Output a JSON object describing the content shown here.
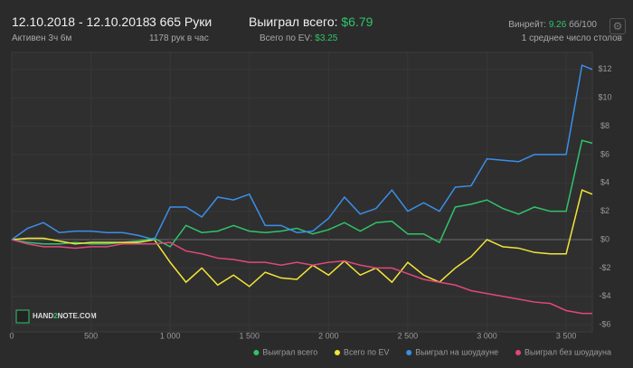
{
  "header": {
    "date_range": "12.10.2018 - 12.10.2018",
    "active": "Активен 3ч 6м",
    "hands": "3 665 Руки",
    "hands_per_hour": "1178 рук в час",
    "won_label": "Выиграл всего:",
    "won_value": "$6.79",
    "ev_label": "Всего по EV:",
    "ev_value": "$3.25",
    "winrate_label": "Винрейт:",
    "winrate_value": "9.26",
    "winrate_unit": "бб/100",
    "tables": "1 среднее число столов"
  },
  "logo": {
    "part1": "HAND",
    "part2": "2",
    "part3": "NOTE.COM"
  },
  "chart_data": {
    "type": "line",
    "grid": true,
    "x": [
      0,
      100,
      200,
      300,
      400,
      500,
      600,
      700,
      800,
      900,
      1000,
      1100,
      1200,
      1300,
      1400,
      1500,
      1600,
      1700,
      1800,
      1900,
      2000,
      2100,
      2200,
      2300,
      2400,
      2500,
      2600,
      2700,
      2800,
      2900,
      3000,
      3100,
      3200,
      3300,
      3400,
      3500,
      3600,
      3665
    ],
    "xlim": [
      0,
      3665
    ],
    "xticks": [
      0,
      500,
      {
        "value": 1000,
        "label": "1 000"
      },
      {
        "value": 1500,
        "label": "1 500"
      },
      {
        "value": 2000,
        "label": "2 000"
      },
      {
        "value": 2500,
        "label": "2 500"
      },
      {
        "value": 3000,
        "label": "3 000"
      },
      {
        "value": 3500,
        "label": "3 500"
      }
    ],
    "ylim": [
      -6.5,
      13.2
    ],
    "yticks": [
      {
        "value": -6,
        "label": "-$6"
      },
      {
        "value": -4,
        "label": "-$4"
      },
      {
        "value": -2,
        "label": "-$2"
      },
      {
        "value": 0,
        "label": "$0"
      },
      {
        "value": 2,
        "label": "$2"
      },
      {
        "value": 4,
        "label": "$4"
      },
      {
        "value": 6,
        "label": "$6"
      },
      {
        "value": 8,
        "label": "$8"
      },
      {
        "value": 10,
        "label": "$10"
      },
      {
        "value": 12,
        "label": "$12"
      }
    ],
    "series": [
      {
        "name": "Выиграл всего",
        "color": "#2fc46a",
        "values": [
          0,
          -0.2,
          -0.3,
          -0.3,
          -0.2,
          -0.3,
          -0.3,
          -0.2,
          -0.1,
          0.1,
          -0.5,
          1.0,
          0.5,
          0.6,
          1.0,
          0.6,
          0.5,
          0.6,
          0.8,
          0.4,
          0.7,
          1.2,
          0.6,
          1.2,
          1.3,
          0.4,
          0.4,
          -0.2,
          2.3,
          2.5,
          2.8,
          2.2,
          1.8,
          2.3,
          2.0,
          2.0,
          7.0,
          6.8
        ]
      },
      {
        "name": "Всего по EV",
        "color": "#f2e53a",
        "values": [
          0,
          0.1,
          0.1,
          -0.1,
          -0.3,
          -0.2,
          -0.2,
          -0.2,
          -0.2,
          0,
          -1.6,
          -3.0,
          -2.0,
          -3.2,
          -2.5,
          -3.3,
          -2.3,
          -2.7,
          -2.8,
          -1.8,
          -2.5,
          -1.5,
          -2.5,
          -2.0,
          -3.0,
          -1.6,
          -2.5,
          -3.0,
          -2.0,
          -1.2,
          0,
          -0.5,
          -0.6,
          -0.9,
          -1.0,
          -1.0,
          3.5,
          3.2
        ]
      },
      {
        "name": "Выиграл на шоудауне",
        "color": "#3b8fe8",
        "values": [
          0,
          0.8,
          1.2,
          0.5,
          0.6,
          0.6,
          0.5,
          0.5,
          0.3,
          0,
          2.3,
          2.3,
          1.6,
          3.0,
          2.8,
          3.2,
          1.0,
          1.0,
          0.5,
          0.6,
          1.5,
          3.0,
          1.8,
          2.2,
          3.5,
          2.0,
          2.6,
          2.0,
          3.7,
          3.8,
          5.7,
          5.6,
          5.5,
          6.0,
          6.0,
          6.0,
          12.3,
          12.0
        ]
      },
      {
        "name": "Выиграл без шоудауна",
        "color": "#e2477c",
        "values": [
          0,
          -0.3,
          -0.5,
          -0.5,
          -0.6,
          -0.5,
          -0.5,
          -0.3,
          -0.3,
          -0.3,
          -0.2,
          -0.8,
          -1.0,
          -1.3,
          -1.4,
          -1.6,
          -1.6,
          -1.8,
          -1.6,
          -1.8,
          -1.6,
          -1.5,
          -1.8,
          -2.0,
          -2.0,
          -2.4,
          -2.8,
          -3.0,
          -3.2,
          -3.6,
          -3.8,
          -4.0,
          -4.2,
          -4.4,
          -4.5,
          -5.0,
          -5.2,
          -5.2
        ]
      }
    ]
  }
}
